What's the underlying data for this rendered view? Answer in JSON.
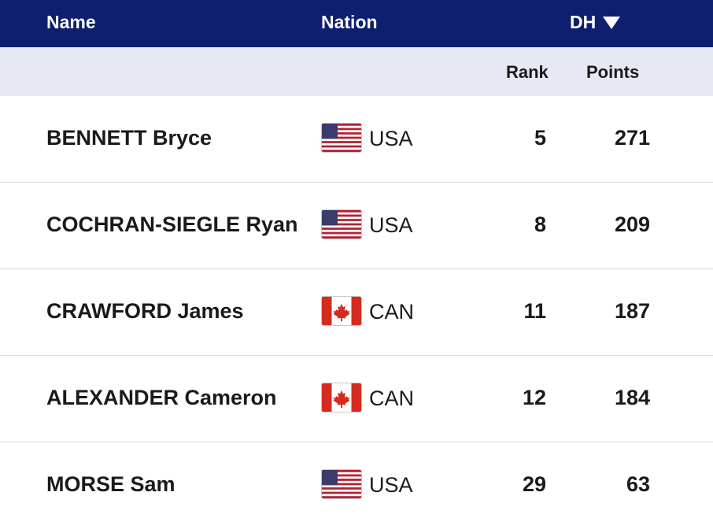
{
  "header": {
    "name_label": "Name",
    "nation_label": "Nation",
    "discipline_label": "DH",
    "sort_icon": "triangle-down-icon"
  },
  "subheader": {
    "rank_label": "Rank",
    "points_label": "Points"
  },
  "colors": {
    "header_bg": "#0d1f6e",
    "subheader_bg": "#e6e9f4"
  },
  "rows": [
    {
      "name": "BENNETT Bryce",
      "flag": "usa-flag-icon",
      "nation": "USA",
      "rank": "5",
      "points": "271"
    },
    {
      "name": "COCHRAN-SIEGLE Ryan",
      "flag": "usa-flag-icon",
      "nation": "USA",
      "rank": "8",
      "points": "209"
    },
    {
      "name": "CRAWFORD James",
      "flag": "canada-flag-icon",
      "nation": "CAN",
      "rank": "11",
      "points": "187"
    },
    {
      "name": "ALEXANDER Cameron",
      "flag": "canada-flag-icon",
      "nation": "CAN",
      "rank": "12",
      "points": "184"
    },
    {
      "name": "MORSE Sam",
      "flag": "usa-flag-icon",
      "nation": "USA",
      "rank": "29",
      "points": "63"
    }
  ]
}
